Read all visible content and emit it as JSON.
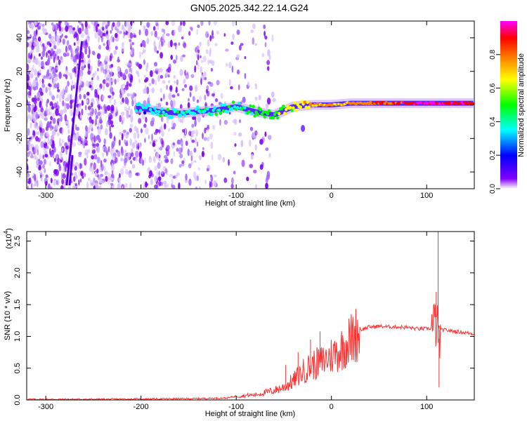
{
  "title": "GN05.2025.342.22.14.G24",
  "chart_data": [
    {
      "type": "heatmap",
      "xlabel": "Height of straight line (km)",
      "ylabel": "Frequency (Hz)",
      "xlim": [
        -320,
        150
      ],
      "ylim": [
        -50,
        50
      ],
      "xticks": [
        -300,
        -200,
        -100,
        0,
        100
      ],
      "xtick_labels": [
        "-300",
        "-200",
        "-100",
        "0",
        "100"
      ],
      "yticks": [
        -40,
        -20,
        0,
        20,
        40
      ],
      "ytick_labels": [
        "-40",
        "-20",
        "0",
        "20",
        "40"
      ],
      "colorbar": {
        "label": "Normalized spectral amplitude",
        "range": [
          0,
          1
        ],
        "ticks": [
          0.0,
          0.2,
          0.4,
          0.6,
          0.8
        ],
        "tick_labels": [
          "0.0",
          "0.2",
          "0.4",
          "0.6",
          "0.8"
        ],
        "colormap": [
          "#ffffff",
          "#8000ff",
          "#0000ff",
          "#00ffff",
          "#00ff00",
          "#ffff00",
          "#ff8000",
          "#ff0000",
          "#ff00ff"
        ]
      },
      "grid": false,
      "features": {
        "signal_line": {
          "x": [
            -200,
            -180,
            -160,
            -140,
            -120,
            -100,
            -80,
            -60,
            -40,
            -20,
            0,
            20,
            40,
            60,
            80,
            100,
            120,
            150
          ],
          "frequency": [
            -2,
            -4,
            -5,
            -4,
            -3,
            -1,
            -4,
            -6,
            -1,
            0,
            0,
            1,
            1,
            1,
            1,
            1,
            1,
            1
          ],
          "amplitude": [
            0.25,
            0.3,
            0.3,
            0.3,
            0.3,
            0.35,
            0.4,
            0.45,
            0.55,
            0.65,
            0.7,
            0.72,
            0.75,
            0.8,
            0.85,
            0.9,
            0.85,
            0.85
          ]
        },
        "noise_region_x": [
          -320,
          -120
        ],
        "colors": {
          "noise": "#8000ff",
          "signal_peak": "#ff2020"
        }
      }
    },
    {
      "type": "line",
      "xlabel": "Height of straight line (km)",
      "ylabel": "SNR (10 * v/v)",
      "scale_label": "(x10",
      "scale_exponent": "4",
      "xlim": [
        -320,
        150
      ],
      "ylim": [
        0,
        2.65
      ],
      "xticks": [
        -300,
        -200,
        -100,
        0,
        100
      ],
      "xtick_labels": [
        "-300",
        "-200",
        "-100",
        "0",
        "100"
      ],
      "yticks": [
        0.0,
        0.5,
        1.0,
        1.5,
        2.0,
        2.5
      ],
      "ytick_labels": [
        "0.0",
        "0.5",
        "1.0",
        "1.5",
        "2.0",
        "2.5"
      ],
      "line_color": "#ff3030",
      "grid": false,
      "series": [
        {
          "x": [
            -320,
            -250,
            -150,
            -110,
            -100,
            -80,
            -60,
            -50,
            -40,
            -30,
            -20,
            -10,
            0,
            10,
            20,
            30,
            40,
            50,
            60,
            70,
            80,
            90,
            100,
            105,
            108,
            110,
            112,
            115,
            120,
            130,
            140,
            150
          ],
          "values": [
            0.01,
            0.01,
            0.02,
            0.03,
            0.06,
            0.08,
            0.15,
            0.2,
            0.3,
            0.45,
            0.55,
            0.6,
            0.7,
            0.8,
            0.95,
            1.1,
            1.15,
            1.16,
            1.15,
            1.15,
            1.14,
            1.12,
            1.12,
            1.13,
            1.1,
            1.3,
            0.9,
            1.1,
            1.1,
            1.08,
            1.06,
            1.04
          ],
          "spikes": {
            "x": [
              -48,
              -35,
              -22,
              -12,
              5,
              110,
              112,
              113
            ],
            "values": [
              0.55,
              0.75,
              0.95,
              1.08,
              0.85,
              1.7,
              2.65,
              0.2
            ]
          }
        }
      ]
    }
  ]
}
